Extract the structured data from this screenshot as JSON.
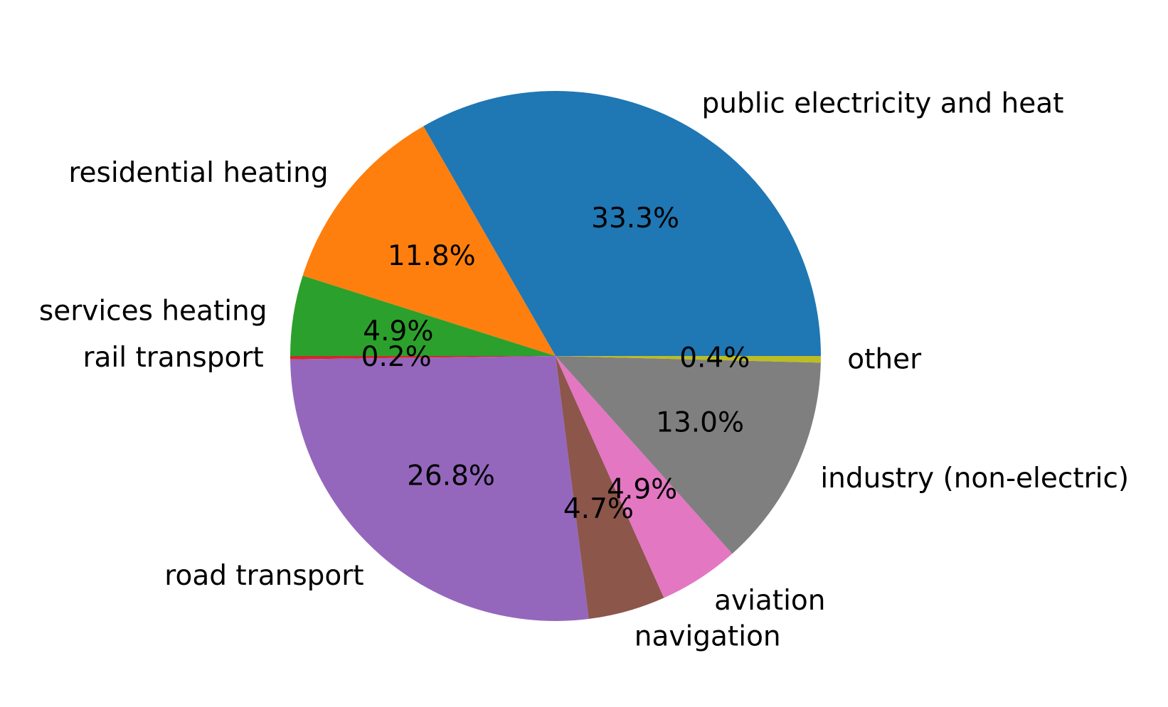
{
  "chart_data": {
    "type": "pie",
    "title": "",
    "startangle_deg": 0,
    "direction": "counterclockwise",
    "slices": [
      {
        "label": "public electricity and heat",
        "value": 33.3,
        "pct_label": "33.3%",
        "color": "#1f77b4"
      },
      {
        "label": "residential heating",
        "value": 11.8,
        "pct_label": "11.8%",
        "color": "#ff7f0e"
      },
      {
        "label": "services heating",
        "value": 4.9,
        "pct_label": "4.9%",
        "color": "#2ca02c"
      },
      {
        "label": "rail transport",
        "value": 0.2,
        "pct_label": "0.2%",
        "color": "#d62728"
      },
      {
        "label": "road transport",
        "value": 26.8,
        "pct_label": "26.8%",
        "color": "#9467bd"
      },
      {
        "label": "navigation",
        "value": 4.7,
        "pct_label": "4.7%",
        "color": "#8c564b"
      },
      {
        "label": "aviation",
        "value": 4.9,
        "pct_label": "4.9%",
        "color": "#e377c2"
      },
      {
        "label": "industry (non-electric)",
        "value": 13.0,
        "pct_label": "13.0%",
        "color": "#7f7f7f"
      },
      {
        "label": "other",
        "value": 0.4,
        "pct_label": "0.4%",
        "color": "#bcbd22"
      }
    ]
  }
}
